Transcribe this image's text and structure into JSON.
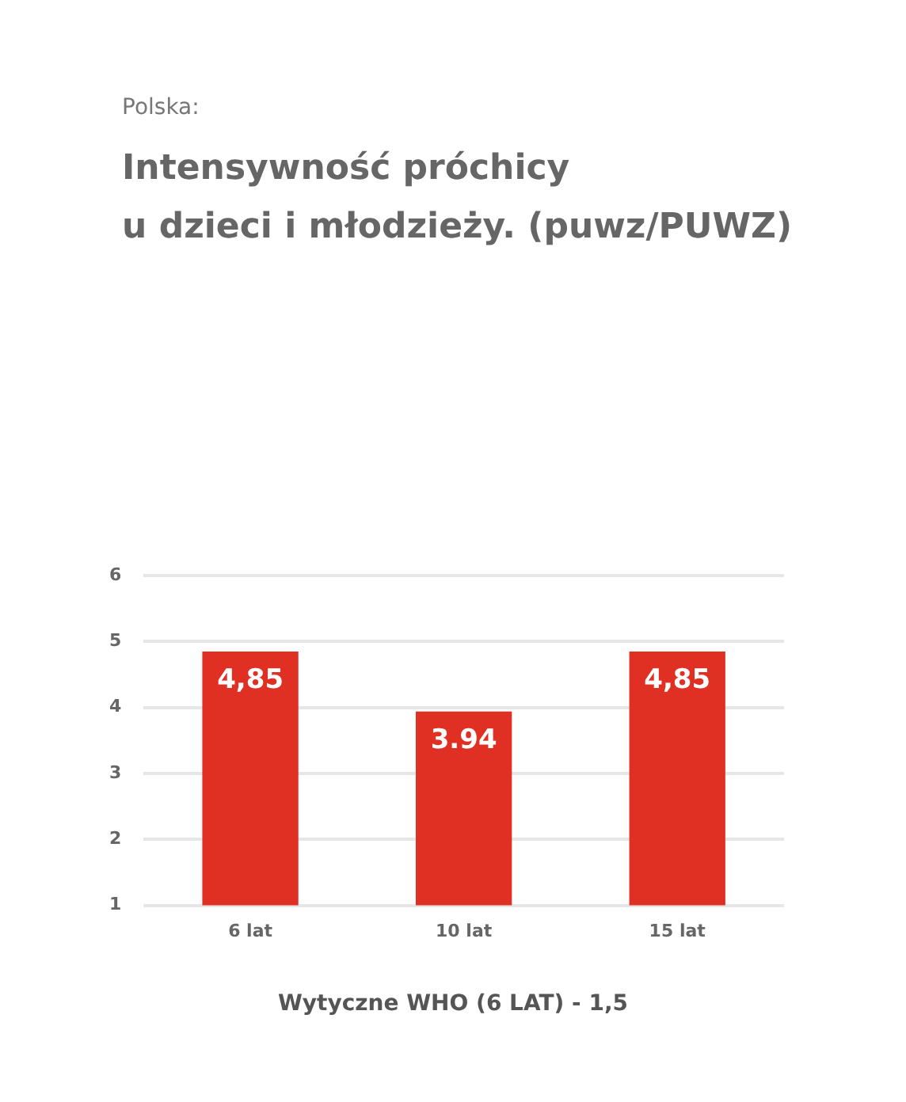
{
  "chart_data": {
    "type": "bar",
    "subtitle": "Polska:",
    "title": "Intensywność próchicy\nu dzieci i młodzieży. (puwz/PUWZ)",
    "categories": [
      "6 lat",
      "10 lat",
      "15 lat"
    ],
    "values": [
      4.85,
      3.94,
      4.85
    ],
    "value_labels": [
      "4,85",
      "3.94",
      "4,85"
    ],
    "color": "#e03024",
    "ylim": [
      1,
      6
    ],
    "yticks": [
      1,
      2,
      3,
      4,
      5,
      6
    ],
    "grid": "y",
    "annotations": [
      "Wytyczne WHO (6 LAT) - 1,5"
    ]
  }
}
